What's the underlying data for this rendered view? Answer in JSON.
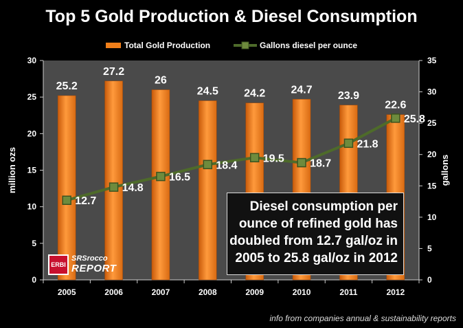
{
  "chart_data": {
    "type": "bar",
    "title": "Top 5 Gold Production & Diesel Consumption",
    "categories": [
      "2005",
      "2006",
      "2007",
      "2008",
      "2009",
      "2010",
      "2011",
      "2012"
    ],
    "series": [
      {
        "name": "Total Gold Production",
        "type": "bar",
        "axis": "left",
        "values": [
          25.2,
          27.2,
          26,
          24.5,
          24.2,
          24.7,
          23.9,
          22.6
        ],
        "labels": [
          "25.2",
          "27.2",
          "26",
          "24.5",
          "24.2",
          "24.7",
          "23.9",
          "22.6"
        ],
        "color": "#F07F1A"
      },
      {
        "name": "Gallons diesel per ounce",
        "type": "line",
        "axis": "right",
        "values": [
          12.7,
          14.8,
          16.5,
          18.4,
          19.5,
          18.7,
          21.8,
          25.8
        ],
        "labels": [
          "12.7",
          "14.8",
          "16.5",
          "18.4",
          "19.5",
          "18.7",
          "21.8",
          "25.8"
        ],
        "color": "#4E6B2A"
      }
    ],
    "ylabel": "million ozs",
    "y2label": "gallons",
    "ylim": [
      0,
      30
    ],
    "y2lim": [
      0,
      35
    ],
    "yticks": [
      "0",
      "5",
      "10",
      "15",
      "20",
      "25",
      "30"
    ],
    "y2ticks": [
      "0",
      "5",
      "10",
      "15",
      "20",
      "25",
      "30",
      "35"
    ],
    "legend_position": "top",
    "grid": false,
    "plot_background": "#4A4A4A"
  },
  "annotation": {
    "lines": [
      "Diesel consumption per",
      "ounce of refined gold has",
      "doubled from 12.7 gal/oz in",
      "2005 to 25.8 gal/oz in 2012"
    ]
  },
  "logo": {
    "box_text": "ERBI",
    "line1": "SRSrocco",
    "line2": "REPORT"
  },
  "source_note": "info from companies annual & sustainability reports"
}
